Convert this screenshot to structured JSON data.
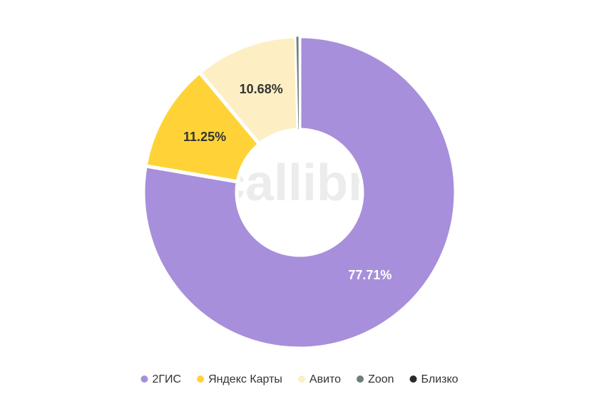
{
  "chart_data": {
    "type": "donut",
    "watermark": "callibri",
    "categories": [
      "2ГИС",
      "Яндекс Карты",
      "Авито",
      "Zoon",
      "Близко"
    ],
    "values": [
      77.71,
      11.25,
      10.68,
      0.3,
      0.06
    ],
    "value_labels": [
      "77.71%",
      "11.25%",
      "10.68%",
      null,
      null
    ],
    "colors": [
      "#a78fdb",
      "#ffd337",
      "#fdefc3",
      "#717c7d",
      "#2a2a2a"
    ],
    "legend": "bottom"
  }
}
